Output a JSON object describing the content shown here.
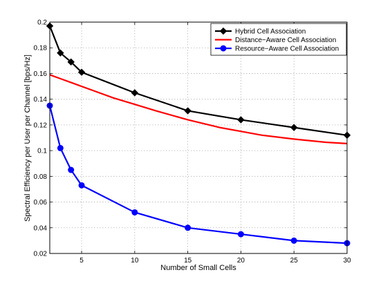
{
  "chart_data": {
    "type": "line",
    "title": "",
    "xlabel": "Number of Small Cells",
    "ylabel": "Spectral Efficiency per User per Channel [bps/Hz]",
    "xlim": [
      2,
      30
    ],
    "ylim": [
      0.02,
      0.2
    ],
    "xticks": [
      5,
      10,
      15,
      20,
      25,
      30
    ],
    "yticks": [
      0.02,
      0.04,
      0.06,
      0.08,
      0.1,
      0.12,
      0.14,
      0.16,
      0.18,
      0.2
    ],
    "xtick_labels": [
      "5",
      "10",
      "15",
      "20",
      "25",
      "30"
    ],
    "ytick_labels": [
      "0.02",
      "0.04",
      "0.06",
      "0.08",
      "0.1",
      "0.12",
      "0.14",
      "0.16",
      "0.18",
      "0.2"
    ],
    "grid": true,
    "legend_position": "top-right",
    "series": [
      {
        "name": "Hybrid Cell Association",
        "color": "#000000",
        "marker": "diamond",
        "x": [
          2,
          3,
          4,
          5,
          10,
          15,
          20,
          25,
          30
        ],
        "y": [
          0.197,
          0.176,
          0.169,
          0.161,
          0.145,
          0.131,
          0.124,
          0.118,
          0.112
        ]
      },
      {
        "name": "Distance−Aware Cell Association",
        "color": "#ff0000",
        "marker": "none",
        "x": [
          2,
          3,
          4,
          5,
          6,
          8,
          10,
          12,
          15,
          18,
          20,
          22,
          25,
          28,
          30
        ],
        "y": [
          0.159,
          0.156,
          0.153,
          0.15,
          0.147,
          0.141,
          0.136,
          0.131,
          0.124,
          0.118,
          0.115,
          0.112,
          0.109,
          0.1065,
          0.1055
        ]
      },
      {
        "name": "Resource−Aware Cell Association",
        "color": "#0000ff",
        "marker": "circle",
        "x": [
          2,
          3,
          4,
          5,
          10,
          15,
          20,
          25,
          30
        ],
        "y": [
          0.135,
          0.102,
          0.085,
          0.073,
          0.052,
          0.04,
          0.035,
          0.03,
          0.028
        ]
      }
    ]
  }
}
